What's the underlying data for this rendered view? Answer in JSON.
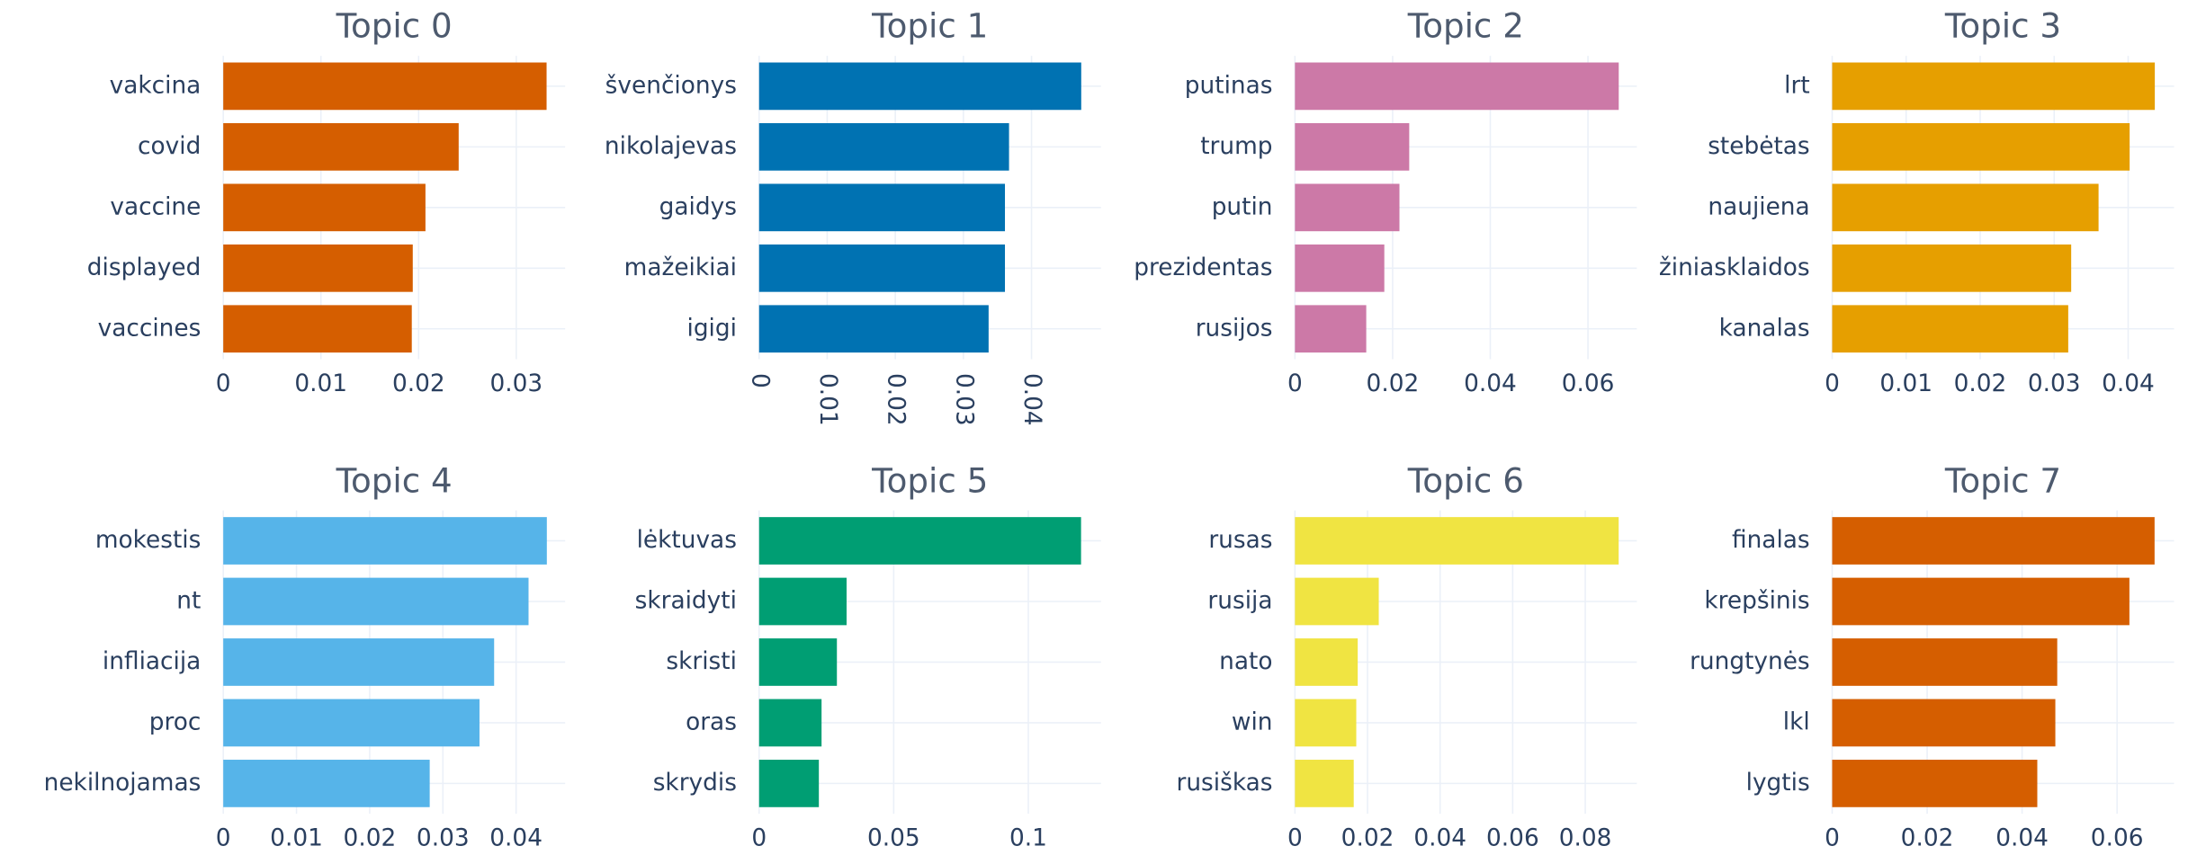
{
  "chart_data": [
    {
      "type": "bar",
      "orientation": "h",
      "title": "Topic 0",
      "categories": [
        "vakcina",
        "covid",
        "vaccine",
        "displayed",
        "vaccines"
      ],
      "values": [
        0.0331,
        0.0241,
        0.0207,
        0.0194,
        0.0193
      ],
      "color": "#D55E00",
      "xlim": [
        0,
        0.035
      ],
      "xticks": [
        0,
        0.01,
        0.02,
        0.03
      ],
      "grid": true
    },
    {
      "type": "bar",
      "orientation": "h",
      "title": "Topic 1",
      "categories": [
        "švenčionys",
        "nikolajevas",
        "gaidys",
        "mažeikiai",
        "igigi"
      ],
      "values": [
        0.0473,
        0.0367,
        0.0361,
        0.0361,
        0.0337
      ],
      "color": "#0072B2",
      "xlim": [
        0,
        0.0502
      ],
      "xticks": [
        0,
        0.01,
        0.02,
        0.03,
        0.04
      ],
      "xtick_angle": 90,
      "grid": true
    },
    {
      "type": "bar",
      "orientation": "h",
      "title": "Topic 2",
      "categories": [
        "putinas",
        "trump",
        "putin",
        "prezidentas",
        "rusijos"
      ],
      "values": [
        0.0663,
        0.0234,
        0.0214,
        0.0183,
        0.0146
      ],
      "color": "#CC79A7",
      "xlim": [
        0,
        0.07
      ],
      "xticks": [
        0,
        0.02,
        0.04,
        0.06
      ],
      "grid": true
    },
    {
      "type": "bar",
      "orientation": "h",
      "title": "Topic 3",
      "categories": [
        "lrt",
        "stebėtas",
        "naujiena",
        "žiniasklaidos",
        "kanalas"
      ],
      "values": [
        0.0436,
        0.0402,
        0.036,
        0.0323,
        0.0319
      ],
      "color": "#E69F00",
      "xlim": [
        0,
        0.0462
      ],
      "xticks": [
        0,
        0.01,
        0.02,
        0.03,
        0.04
      ],
      "grid": true
    },
    {
      "type": "bar",
      "orientation": "h",
      "title": "Topic 4",
      "categories": [
        "mokestis",
        "nt",
        "infliacija",
        "proc",
        "nekilnojamas"
      ],
      "values": [
        0.0442,
        0.0417,
        0.037,
        0.035,
        0.0282
      ],
      "color": "#56B4E9",
      "xlim": [
        0,
        0.0467
      ],
      "xticks": [
        0,
        0.01,
        0.02,
        0.03,
        0.04
      ],
      "grid": true
    },
    {
      "type": "bar",
      "orientation": "h",
      "title": "Topic 5",
      "categories": [
        "lėktuvas",
        "skraidyti",
        "skristi",
        "oras",
        "skrydis"
      ],
      "values": [
        0.1196,
        0.0325,
        0.0289,
        0.0232,
        0.0222
      ],
      "color": "#009E73",
      "xlim": [
        0,
        0.127
      ],
      "xticks": [
        0,
        0.05,
        0.1
      ],
      "grid": true
    },
    {
      "type": "bar",
      "orientation": "h",
      "title": "Topic 6",
      "categories": [
        "rusas",
        "rusija",
        "nato",
        "win",
        "rusiškas"
      ],
      "values": [
        0.0892,
        0.0231,
        0.0173,
        0.0169,
        0.0162
      ],
      "color": "#F0E442",
      "xlim": [
        0,
        0.0942
      ],
      "xticks": [
        0,
        0.02,
        0.04,
        0.06,
        0.08
      ],
      "grid": true
    },
    {
      "type": "bar",
      "orientation": "h",
      "title": "Topic 7",
      "categories": [
        "finalas",
        "krepšinis",
        "rungtynės",
        "lkl",
        "lygtis"
      ],
      "values": [
        0.0679,
        0.0626,
        0.0474,
        0.047,
        0.0432
      ],
      "color": "#D55E00",
      "xlim": [
        0,
        0.072
      ],
      "xticks": [
        0,
        0.02,
        0.04,
        0.06
      ],
      "grid": true
    }
  ]
}
